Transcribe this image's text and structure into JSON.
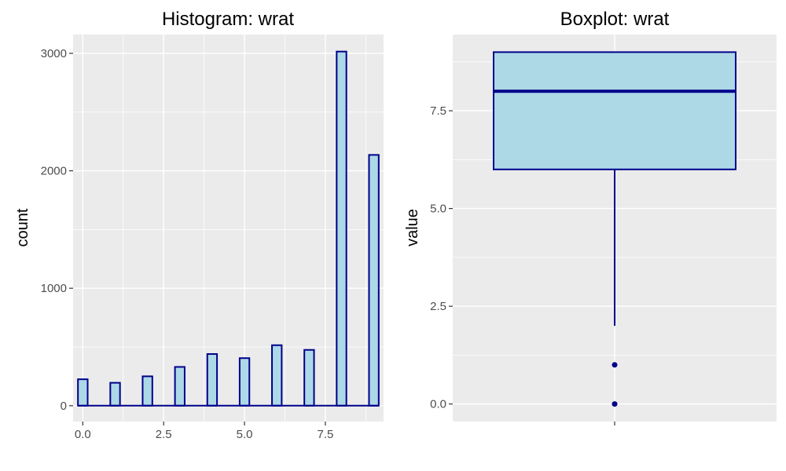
{
  "colors": {
    "panel_bg": "#ebebeb",
    "grid_major": "#ffffff",
    "fill": "#add8e6",
    "stroke": "#00008b",
    "tick": "#333333"
  },
  "chart_data": [
    {
      "type": "bar",
      "title": "Histogram: wrat",
      "xlabel": "",
      "ylabel": "count",
      "bin_width": 0.3,
      "x": [
        0,
        1,
        2,
        3,
        4,
        5,
        6,
        7,
        8,
        9
      ],
      "values": [
        225,
        195,
        250,
        330,
        440,
        405,
        515,
        475,
        3015,
        2135
      ],
      "xlim": [
        -0.3,
        9.3
      ],
      "ylim": [
        -135,
        3160
      ],
      "x_ticks": [
        0,
        2.5,
        5,
        7.5
      ],
      "x_tick_labels": [
        "0.0",
        "2.5",
        "5.0",
        "7.5"
      ],
      "y_ticks": [
        0,
        1000,
        2000,
        3000
      ],
      "y_tick_labels": [
        "0",
        "1000",
        "2000",
        "3000"
      ],
      "grid": true
    },
    {
      "type": "boxplot",
      "title": "Boxplot: wrat",
      "xlabel": "",
      "ylabel": "value",
      "stats": {
        "min_whisker": 2,
        "q1": 6,
        "median": 8,
        "q3": 9,
        "max_whisker": 9
      },
      "outliers": [
        1,
        0
      ],
      "ylim": [
        -0.45,
        9.45
      ],
      "y_ticks": [
        0,
        2.5,
        5,
        7.5
      ],
      "y_tick_labels": [
        "0.0",
        "2.5",
        "5.0",
        "7.5"
      ],
      "grid": true
    }
  ]
}
